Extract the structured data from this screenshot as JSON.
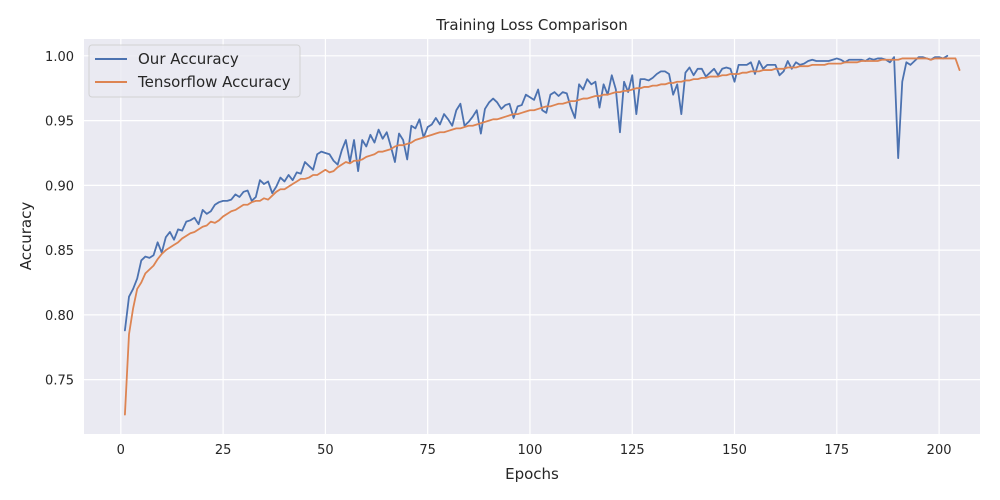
{
  "chart_data": {
    "type": "line",
    "title": "Training Loss Comparison",
    "xlabel": "Epochs",
    "ylabel": "Accuracy",
    "xlim": [
      -9,
      210
    ],
    "ylim": [
      0.708,
      1.013
    ],
    "xticks": [
      0,
      25,
      50,
      75,
      100,
      125,
      150,
      175,
      200
    ],
    "yticks": [
      0.75,
      0.8,
      0.85,
      0.9,
      0.95,
      1.0
    ],
    "xtick_labels": [
      "0",
      "25",
      "50",
      "75",
      "100",
      "125",
      "150",
      "175",
      "200"
    ],
    "ytick_labels": [
      "0.75",
      "0.80",
      "0.85",
      "0.90",
      "0.95",
      "1.00"
    ],
    "grid": true,
    "legend_position": "upper-left",
    "background_color": "#eaeaf2",
    "grid_color": "#ffffff",
    "x_start": 1,
    "series": [
      {
        "name": "Our Accuracy",
        "color": "#4c72b0",
        "values": [
          0.788,
          0.814,
          0.82,
          0.828,
          0.842,
          0.845,
          0.844,
          0.846,
          0.856,
          0.848,
          0.86,
          0.864,
          0.858,
          0.866,
          0.865,
          0.872,
          0.873,
          0.875,
          0.87,
          0.881,
          0.878,
          0.88,
          0.885,
          0.887,
          0.888,
          0.888,
          0.889,
          0.893,
          0.891,
          0.895,
          0.896,
          0.888,
          0.891,
          0.904,
          0.901,
          0.903,
          0.894,
          0.899,
          0.906,
          0.903,
          0.908,
          0.904,
          0.91,
          0.909,
          0.918,
          0.915,
          0.912,
          0.924,
          0.926,
          0.925,
          0.924,
          0.919,
          0.916,
          0.927,
          0.935,
          0.918,
          0.935,
          0.911,
          0.935,
          0.93,
          0.939,
          0.933,
          0.943,
          0.936,
          0.941,
          0.93,
          0.918,
          0.94,
          0.935,
          0.92,
          0.946,
          0.944,
          0.951,
          0.937,
          0.945,
          0.947,
          0.952,
          0.947,
          0.955,
          0.951,
          0.946,
          0.958,
          0.963,
          0.946,
          0.949,
          0.953,
          0.958,
          0.94,
          0.959,
          0.964,
          0.967,
          0.964,
          0.959,
          0.962,
          0.963,
          0.952,
          0.961,
          0.962,
          0.97,
          0.968,
          0.966,
          0.974,
          0.958,
          0.956,
          0.97,
          0.972,
          0.969,
          0.972,
          0.971,
          0.96,
          0.952,
          0.978,
          0.974,
          0.982,
          0.978,
          0.98,
          0.96,
          0.978,
          0.97,
          0.985,
          0.974,
          0.941,
          0.98,
          0.972,
          0.985,
          0.955,
          0.982,
          0.982,
          0.981,
          0.983,
          0.986,
          0.988,
          0.988,
          0.986,
          0.97,
          0.978,
          0.955,
          0.987,
          0.991,
          0.985,
          0.99,
          0.99,
          0.984,
          0.987,
          0.99,
          0.985,
          0.99,
          0.991,
          0.99,
          0.98,
          0.993,
          0.993,
          0.993,
          0.995,
          0.986,
          0.996,
          0.99,
          0.993,
          0.993,
          0.993,
          0.985,
          0.988,
          0.996,
          0.99,
          0.995,
          0.993,
          0.994,
          0.996,
          0.997,
          0.996,
          0.996,
          0.996,
          0.996,
          0.997,
          0.998,
          0.997,
          0.995,
          0.997,
          0.997,
          0.997,
          0.997,
          0.996,
          0.998,
          0.997,
          0.998,
          0.998,
          0.997,
          0.995,
          0.999,
          0.921,
          0.98,
          0.995,
          0.993,
          0.996,
          0.999,
          0.999,
          0.998,
          0.997,
          0.999,
          0.999,
          0.998,
          1.0
        ]
      },
      {
        "name": "Tensorflow Accuracy",
        "color": "#dd8452",
        "values": [
          0.723,
          0.785,
          0.805,
          0.82,
          0.825,
          0.832,
          0.835,
          0.838,
          0.843,
          0.847,
          0.85,
          0.852,
          0.854,
          0.856,
          0.859,
          0.861,
          0.863,
          0.864,
          0.866,
          0.868,
          0.869,
          0.872,
          0.871,
          0.873,
          0.876,
          0.878,
          0.88,
          0.881,
          0.883,
          0.885,
          0.885,
          0.887,
          0.888,
          0.888,
          0.89,
          0.889,
          0.892,
          0.895,
          0.897,
          0.897,
          0.899,
          0.901,
          0.903,
          0.905,
          0.905,
          0.906,
          0.908,
          0.908,
          0.91,
          0.912,
          0.91,
          0.911,
          0.914,
          0.916,
          0.918,
          0.917,
          0.919,
          0.919,
          0.92,
          0.922,
          0.923,
          0.924,
          0.926,
          0.926,
          0.927,
          0.928,
          0.93,
          0.931,
          0.931,
          0.932,
          0.933,
          0.935,
          0.936,
          0.937,
          0.938,
          0.939,
          0.94,
          0.941,
          0.941,
          0.942,
          0.943,
          0.944,
          0.944,
          0.945,
          0.946,
          0.946,
          0.947,
          0.948,
          0.949,
          0.95,
          0.951,
          0.951,
          0.952,
          0.953,
          0.954,
          0.955,
          0.955,
          0.956,
          0.957,
          0.958,
          0.958,
          0.959,
          0.96,
          0.961,
          0.961,
          0.962,
          0.963,
          0.963,
          0.964,
          0.965,
          0.965,
          0.966,
          0.967,
          0.967,
          0.968,
          0.969,
          0.969,
          0.97,
          0.97,
          0.971,
          0.972,
          0.972,
          0.973,
          0.973,
          0.974,
          0.975,
          0.975,
          0.976,
          0.976,
          0.977,
          0.977,
          0.978,
          0.978,
          0.979,
          0.979,
          0.98,
          0.98,
          0.981,
          0.981,
          0.982,
          0.982,
          0.983,
          0.983,
          0.984,
          0.984,
          0.984,
          0.985,
          0.985,
          0.986,
          0.986,
          0.986,
          0.987,
          0.987,
          0.988,
          0.988,
          0.988,
          0.989,
          0.989,
          0.989,
          0.99,
          0.99,
          0.99,
          0.991,
          0.991,
          0.991,
          0.992,
          0.992,
          0.992,
          0.993,
          0.993,
          0.993,
          0.993,
          0.994,
          0.994,
          0.994,
          0.994,
          0.995,
          0.995,
          0.995,
          0.995,
          0.996,
          0.996,
          0.996,
          0.996,
          0.996,
          0.997,
          0.997,
          0.997,
          0.997,
          0.997,
          0.998,
          0.998,
          0.998,
          0.998,
          0.998,
          0.998,
          0.998,
          0.997,
          0.998,
          0.998,
          0.998,
          0.998,
          0.998,
          0.998,
          0.989
        ]
      }
    ]
  }
}
